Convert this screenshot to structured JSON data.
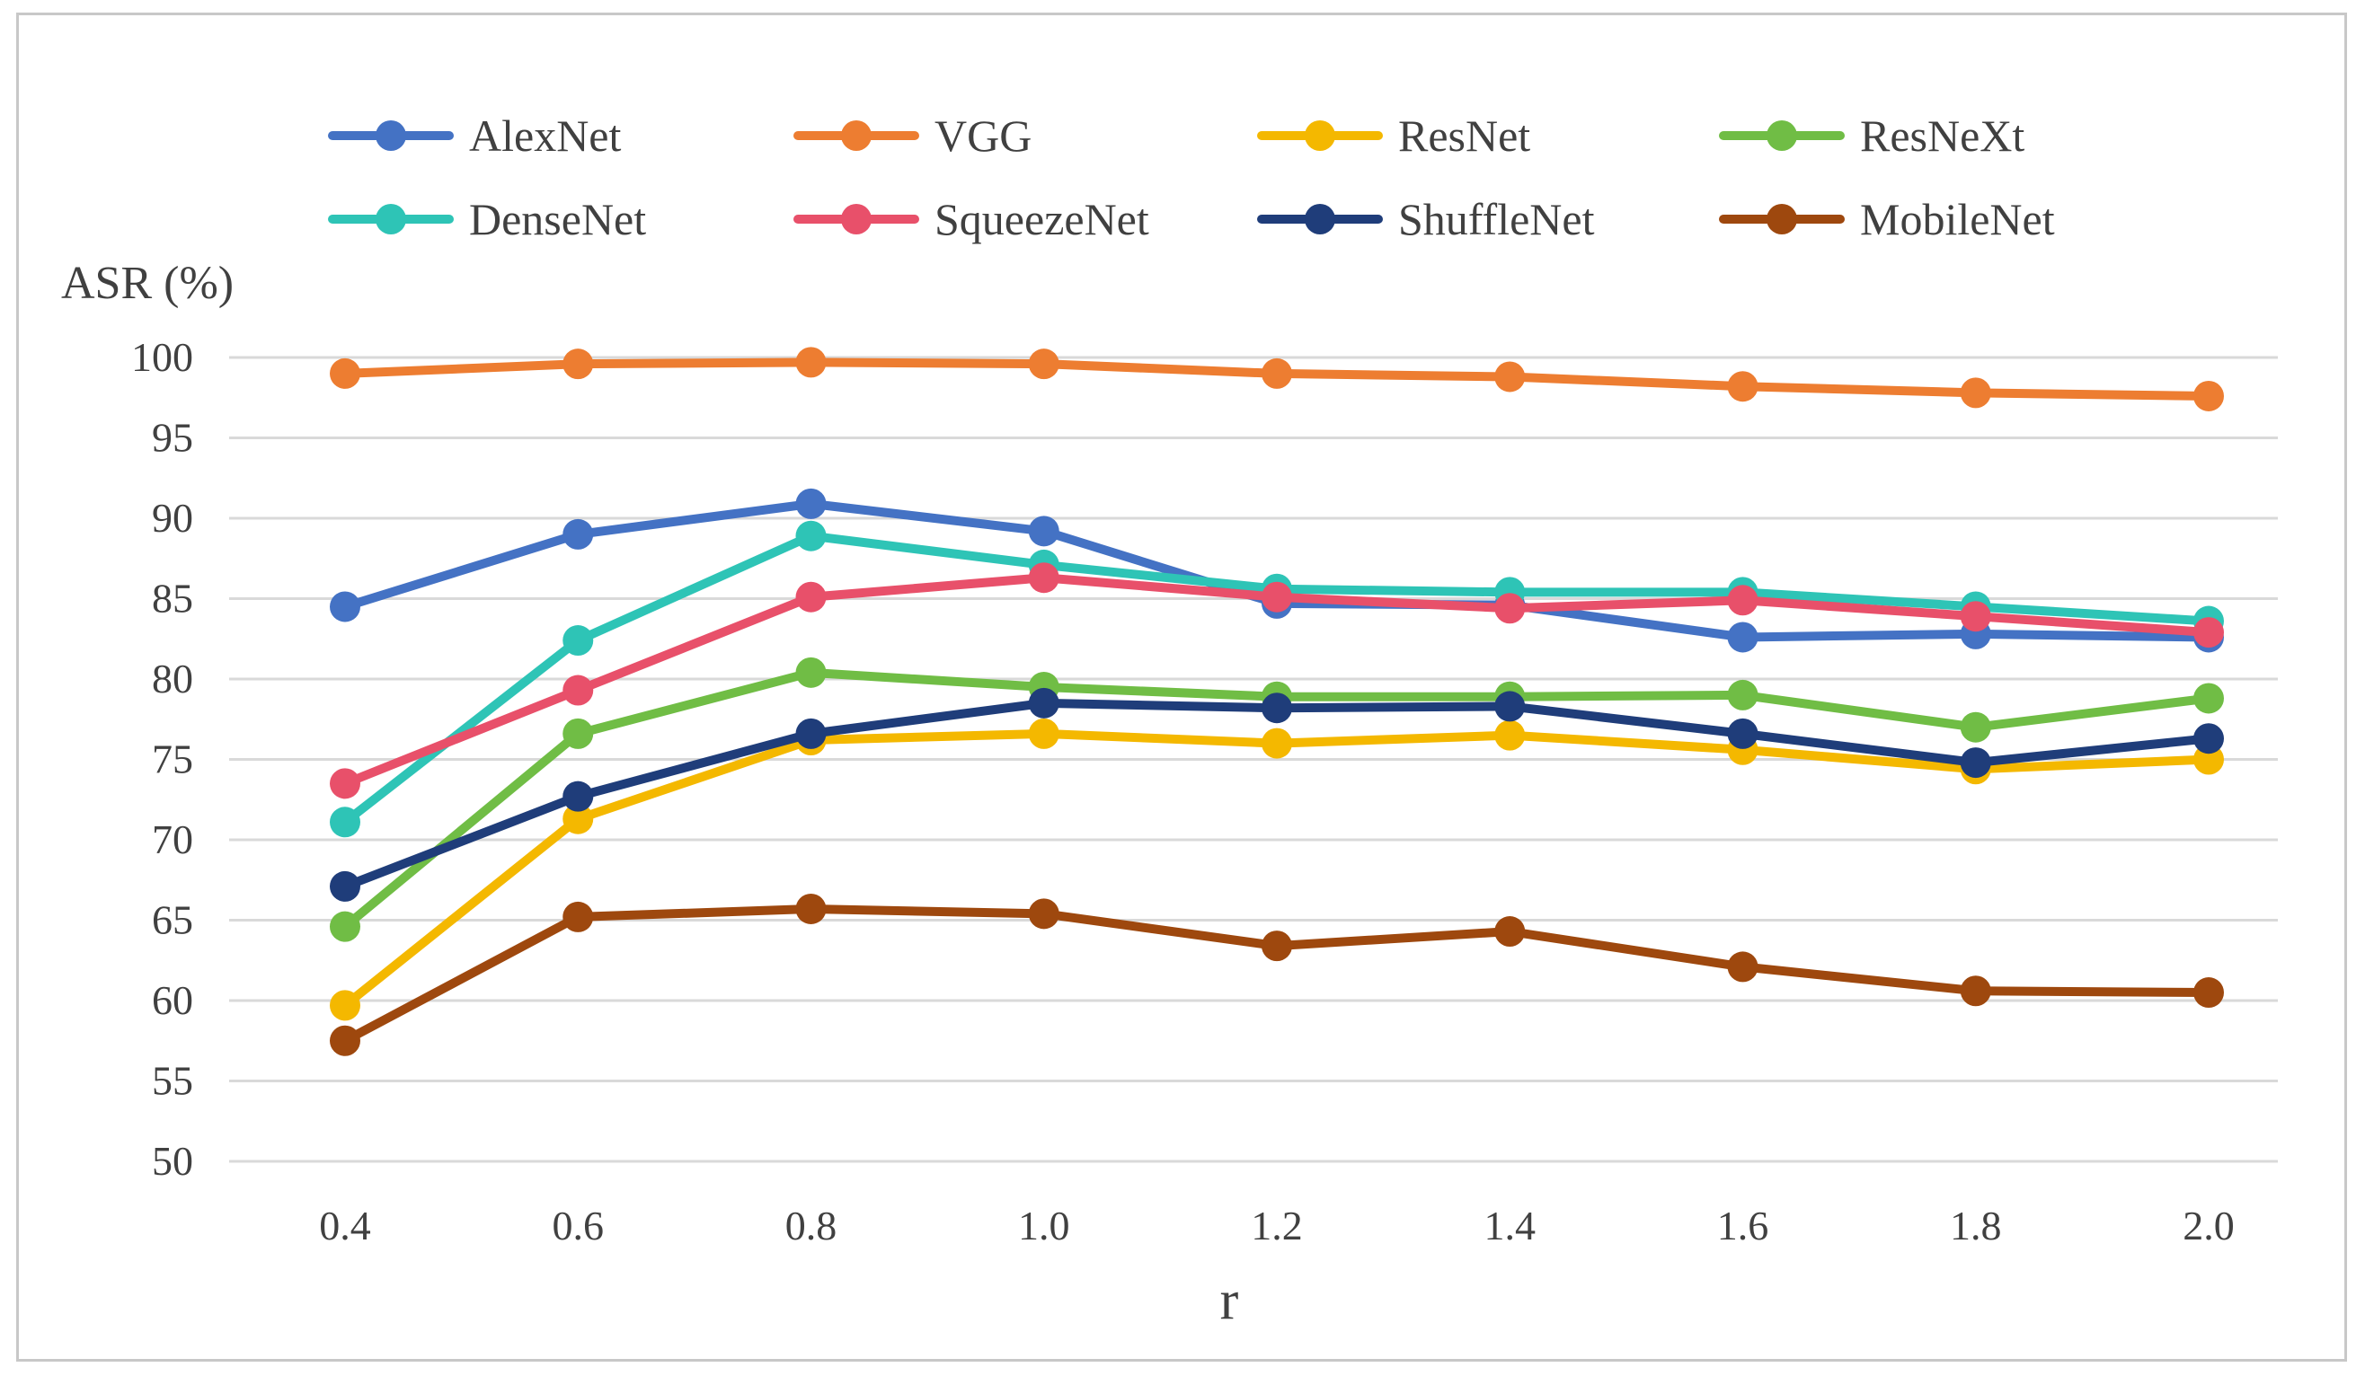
{
  "chart_data": {
    "type": "line",
    "title": "",
    "xlabel": "r",
    "ylabel": "ASR (%)",
    "ylim": [
      50,
      100
    ],
    "yticks": [
      50,
      55,
      60,
      65,
      70,
      75,
      80,
      85,
      90,
      95,
      100
    ],
    "x": [
      "0.4",
      "0.6",
      "0.8",
      "1.0",
      "1.2",
      "1.4",
      "1.6",
      "1.8",
      "2.0"
    ],
    "grid": "horizontal",
    "legend_position": "top",
    "series": [
      {
        "name": "AlexNet",
        "color": "#4472C4",
        "values": [
          84.5,
          89.0,
          90.9,
          89.2,
          84.7,
          84.6,
          82.6,
          82.8,
          82.6
        ]
      },
      {
        "name": "VGG",
        "color": "#ED7D31",
        "values": [
          99.0,
          99.6,
          99.7,
          99.6,
          99.0,
          98.8,
          98.2,
          97.8,
          97.6
        ]
      },
      {
        "name": "ResNet",
        "color": "#F4B800",
        "values": [
          59.7,
          71.3,
          76.2,
          76.6,
          76.0,
          76.5,
          75.6,
          74.4,
          75.0
        ]
      },
      {
        "name": "ResNeXt",
        "color": "#70BD45",
        "values": [
          64.6,
          76.6,
          80.4,
          79.5,
          78.9,
          78.9,
          79.0,
          77.0,
          78.8
        ]
      },
      {
        "name": "DenseNet",
        "color": "#2EC4B6",
        "values": [
          71.1,
          82.4,
          88.9,
          87.1,
          85.6,
          85.4,
          85.4,
          84.5,
          83.6
        ]
      },
      {
        "name": "SqueezeNet",
        "color": "#E8506A",
        "values": [
          73.5,
          79.3,
          85.1,
          86.3,
          85.1,
          84.4,
          84.9,
          83.9,
          82.9
        ]
      },
      {
        "name": "ShuffleNet",
        "color": "#1F3D7A",
        "values": [
          67.1,
          72.7,
          76.6,
          78.5,
          78.2,
          78.3,
          76.6,
          74.8,
          76.3
        ]
      },
      {
        "name": "MobileNet",
        "color": "#9E480E",
        "values": [
          57.5,
          65.2,
          65.7,
          65.4,
          63.4,
          64.3,
          62.1,
          60.6,
          60.5
        ]
      }
    ]
  }
}
